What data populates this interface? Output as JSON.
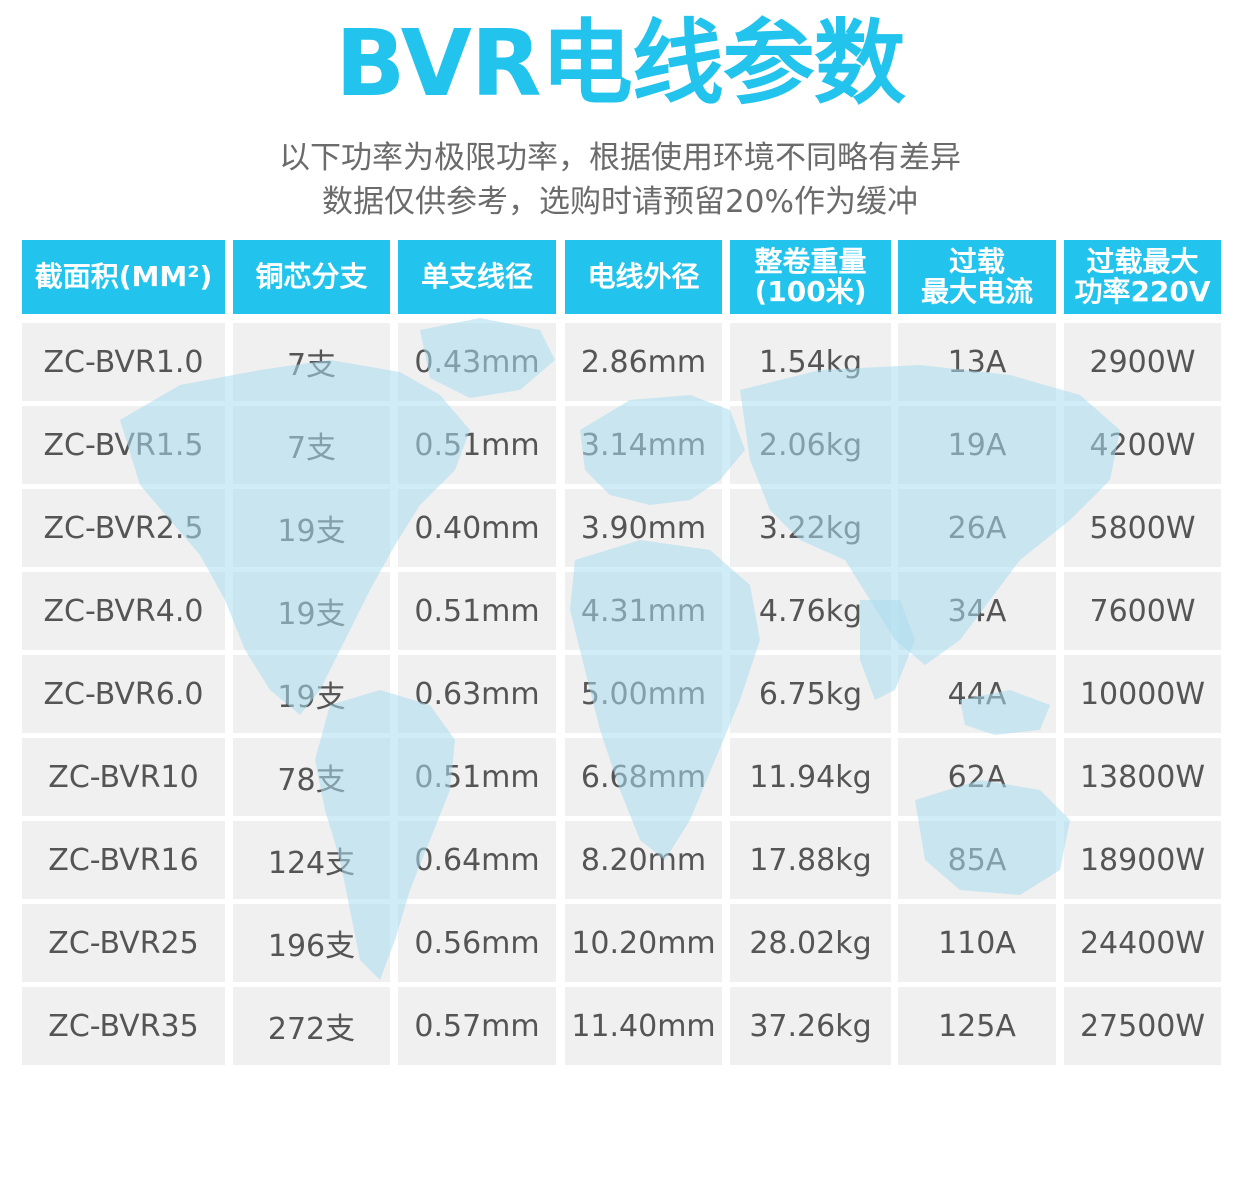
{
  "title": "BVR电线参数",
  "subtitle_line1": "以下功率为极限功率，根据使用环境不同略有差异",
  "subtitle_line2": "数据仅供参考，选购时请预留20%作为缓冲",
  "table": {
    "headers": [
      "截面积(MM²)",
      "铜芯分支",
      "单支线径",
      "电线外径",
      "整卷重量\n(100米)",
      "过载\n最大电流",
      "过载最大\n功率220V"
    ],
    "rows": [
      [
        "ZC-BVR1.0",
        "7支",
        "0.43mm",
        "2.86mm",
        "1.54kg",
        "13A",
        "2900W"
      ],
      [
        "ZC-BVR1.5",
        "7支",
        "0.51mm",
        "3.14mm",
        "2.06kg",
        "19A",
        "4200W"
      ],
      [
        "ZC-BVR2.5",
        "19支",
        "0.40mm",
        "3.90mm",
        "3.22kg",
        "26A",
        "5800W"
      ],
      [
        "ZC-BVR4.0",
        "19支",
        "0.51mm",
        "4.31mm",
        "4.76kg",
        "34A",
        "7600W"
      ],
      [
        "ZC-BVR6.0",
        "19支",
        "0.63mm",
        "5.00mm",
        "6.75kg",
        "44A",
        "10000W"
      ],
      [
        "ZC-BVR10",
        "78支",
        "0.51mm",
        "6.68mm",
        "11.94kg",
        "62A",
        "13800W"
      ],
      [
        "ZC-BVR16",
        "124支",
        "0.64mm",
        "8.20mm",
        "17.88kg",
        "85A",
        "18900W"
      ],
      [
        "ZC-BVR25",
        "196支",
        "0.56mm",
        "10.20mm",
        "28.02kg",
        "110A",
        "24400W"
      ],
      [
        "ZC-BVR35",
        "272支",
        "0.57mm",
        "11.40mm",
        "37.26kg",
        "125A",
        "27500W"
      ]
    ]
  },
  "colors": {
    "accent": "#22c3ec",
    "text": "#555555",
    "subtitle": "#6b6b6b",
    "cell_bg": "#f0f0f0",
    "map": "#a9dcef"
  },
  "decor": {
    "background": "world-map-icon"
  }
}
